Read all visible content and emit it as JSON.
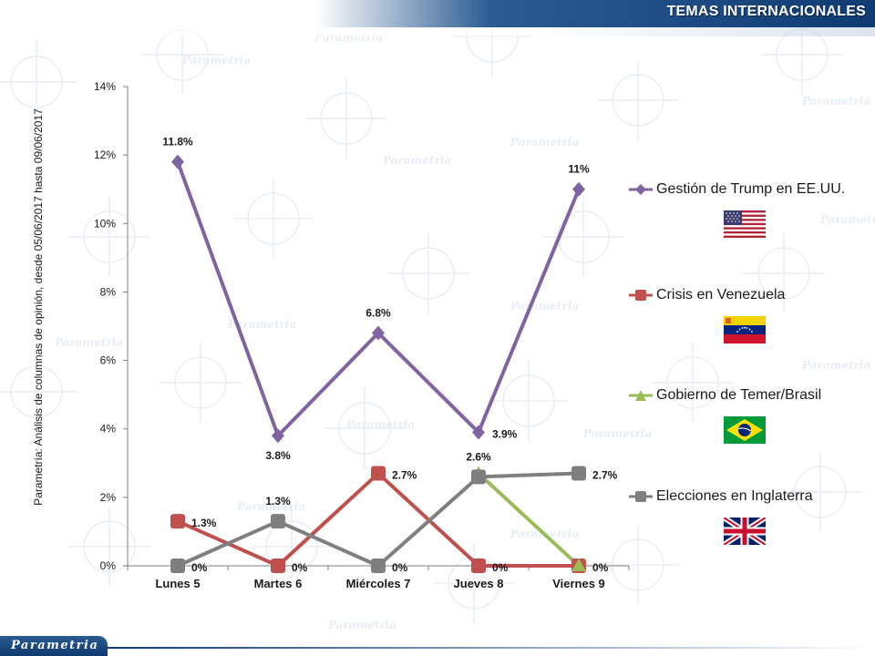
{
  "header": {
    "section_title": "TEMAS INTERNACIONALES"
  },
  "watermark": {
    "brand_text": "Parametria"
  },
  "footer": {
    "logo_text": "Parametria"
  },
  "chart_data": {
    "type": "line",
    "categories": [
      "Lunes 5",
      "Martes 6",
      "Miércoles 7",
      "Jueves 8",
      "Viernes 9"
    ],
    "ylabel": "Parametría: Análisis de columnas de opinión, desde 05/06/2017 hasta 09/06/2017",
    "ylim": [
      0,
      14
    ],
    "yticks": [
      "0%",
      "2%",
      "4%",
      "6%",
      "8%",
      "10%",
      "12%",
      "14%"
    ],
    "grid": false,
    "legend_position": "right",
    "series": [
      {
        "name": "Gestión de Trump en EE.UU.",
        "color": "#8064a2",
        "marker": "diamond",
        "values": [
          11.8,
          3.8,
          6.8,
          3.9,
          11
        ],
        "data_labels": [
          "11.8%",
          "3.8%",
          "6.8%",
          "3.9%",
          "11%"
        ],
        "label_positions": [
          "above",
          "below",
          "above",
          "right",
          "above"
        ],
        "flag": "usa"
      },
      {
        "name": "Crisis en Venezuela",
        "color": "#c0504d",
        "marker": "square",
        "values": [
          1.3,
          0,
          2.7,
          0,
          0
        ],
        "data_labels": [
          "1.3%",
          "0%",
          "2.7%",
          "0%",
          "0%"
        ],
        "label_positions": [
          "right",
          "right",
          "right",
          "right",
          "right"
        ],
        "flag": "venezuela"
      },
      {
        "name": "Gobierno de Temer/Brasil",
        "color": "#9bbb59",
        "marker": "triangle",
        "values": [
          null,
          null,
          null,
          2.7,
          0
        ],
        "data_labels": [
          "",
          "",
          "",
          "",
          ""
        ],
        "label_positions": [
          "",
          "",
          "",
          "",
          ""
        ],
        "flag": "brazil"
      },
      {
        "name": "Elecciones en Inglaterra",
        "color": "#7f7f7f",
        "marker": "square",
        "values": [
          0,
          1.3,
          0,
          2.6,
          2.7
        ],
        "data_labels": [
          "0%",
          "1.3%",
          "0%",
          "2.6%",
          "2.7%"
        ],
        "label_positions": [
          "right",
          "above",
          "right",
          "above",
          "right"
        ],
        "flag": "uk"
      }
    ]
  }
}
